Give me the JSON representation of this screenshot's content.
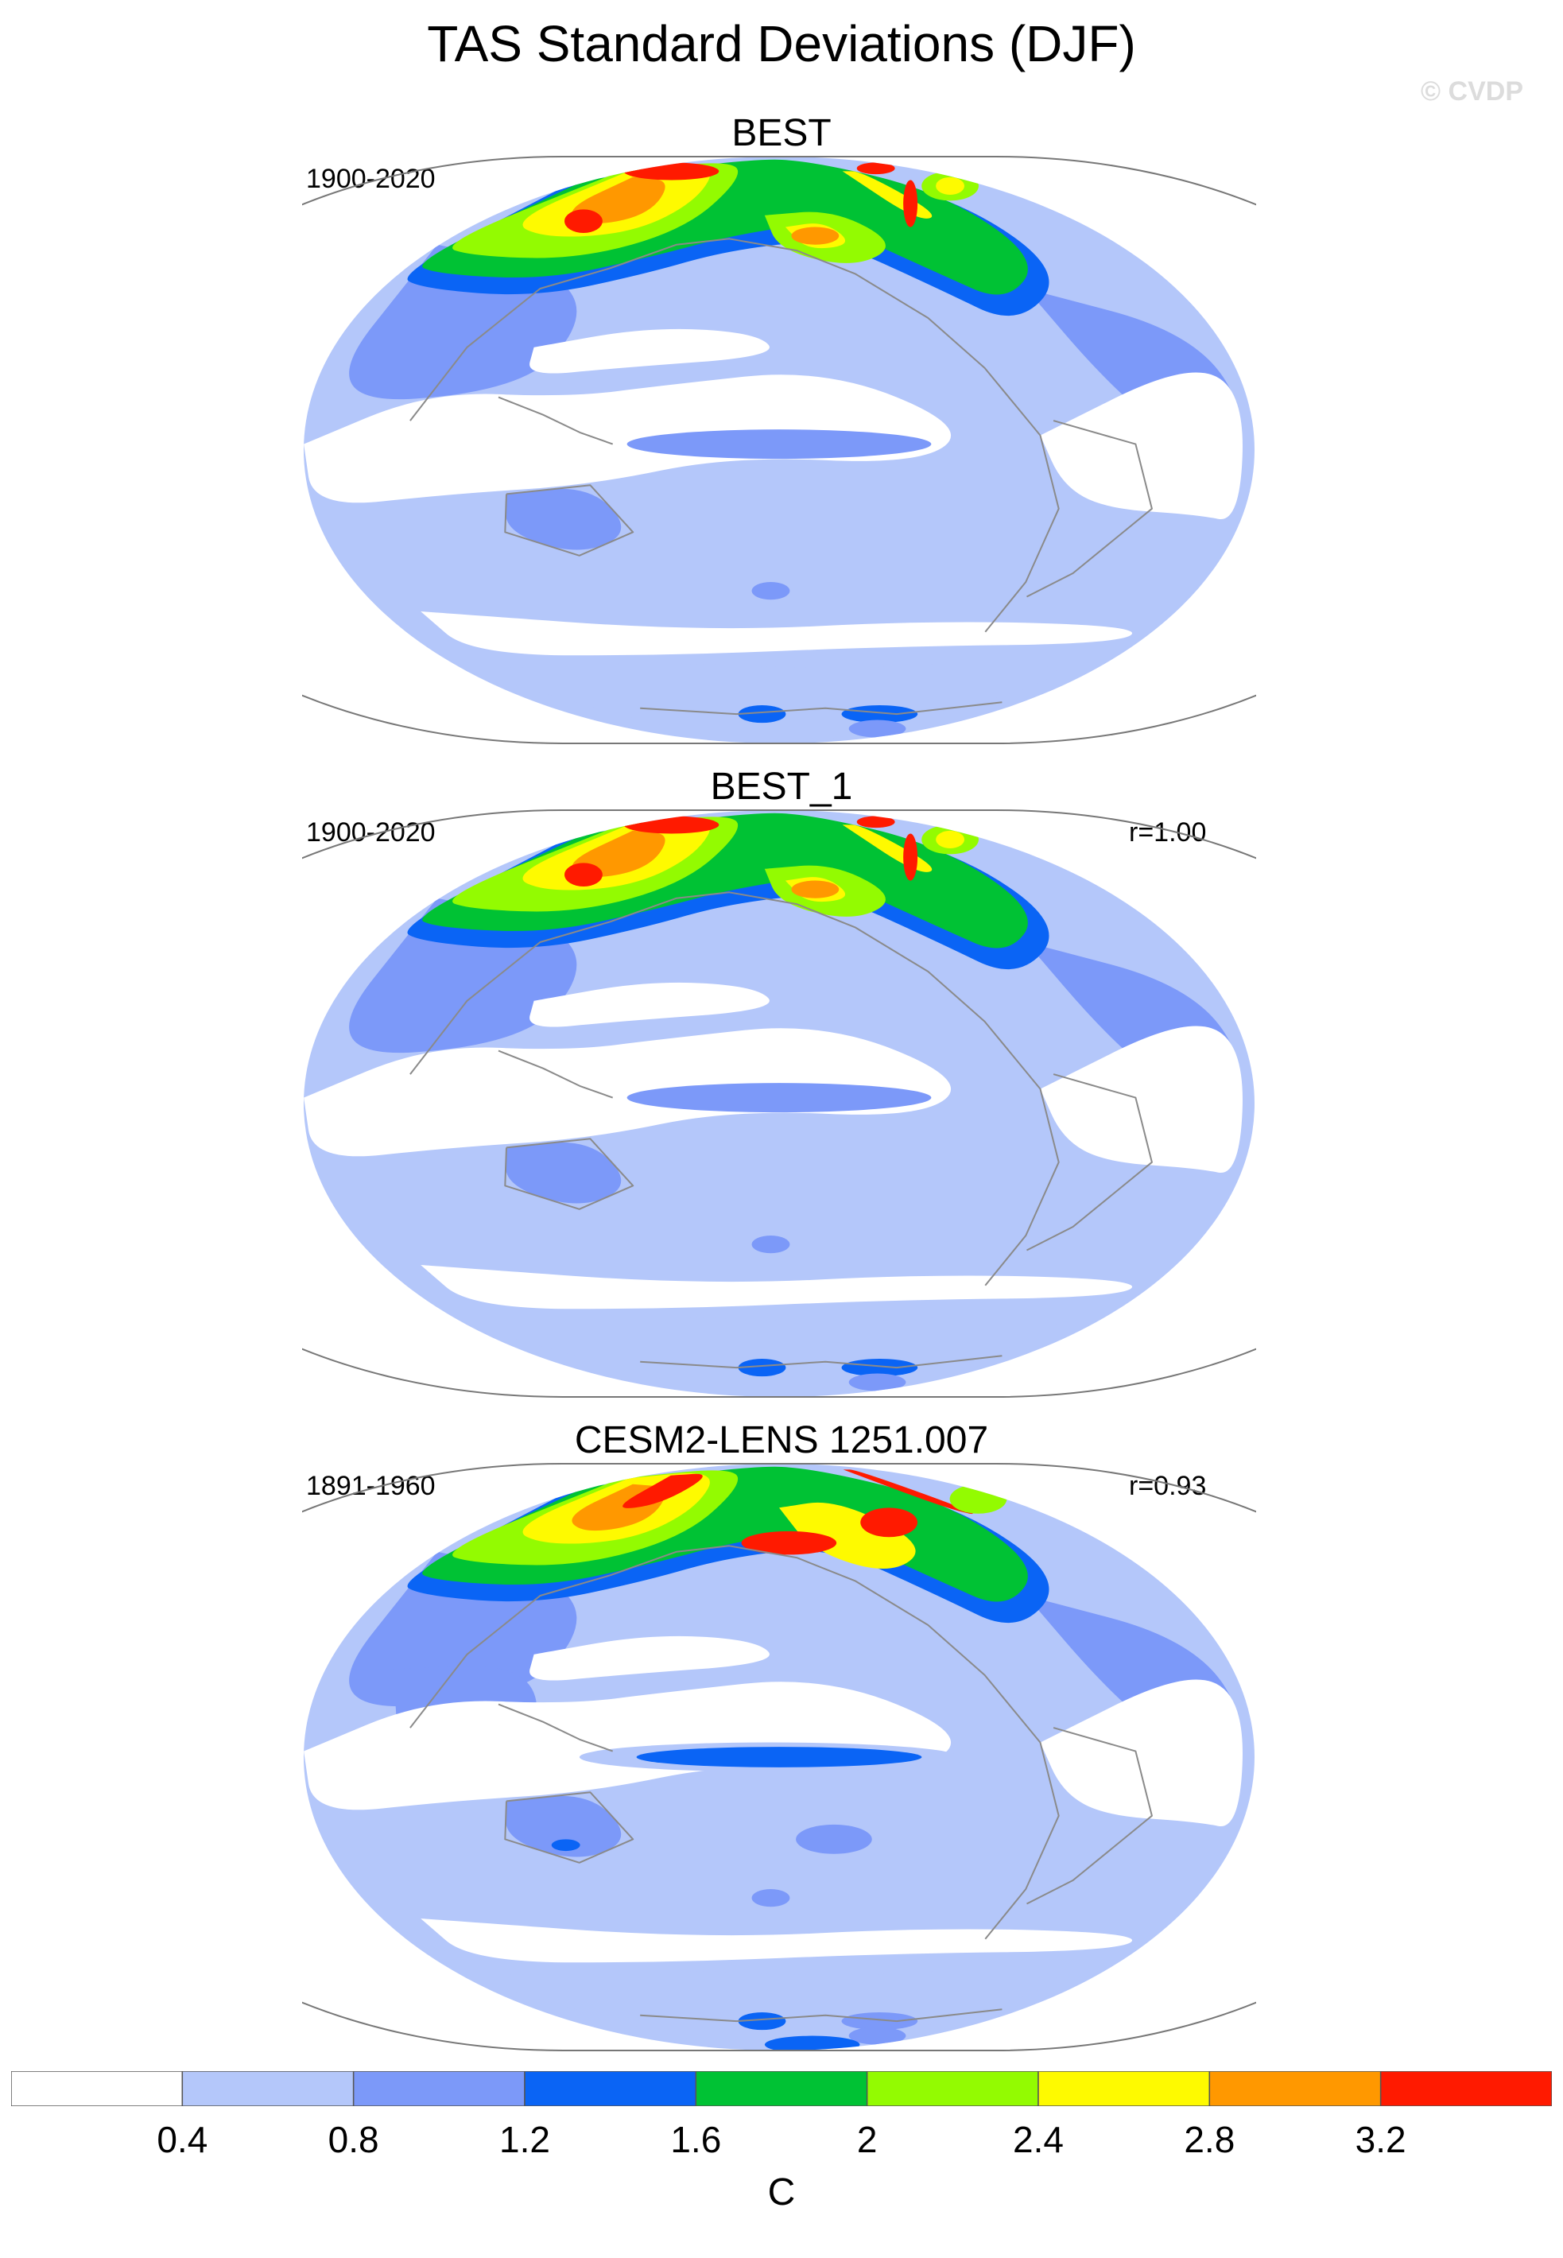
{
  "title": "TAS Standard Deviations (DJF)",
  "credit": "© CVDP",
  "colors": {
    "levels": [
      "#ffffff",
      "#b4c7fa",
      "#7c99f9",
      "#0a64f5",
      "#00c234",
      "#93fb01",
      "#fefa00",
      "#ff9800",
      "#ff1a00"
    ],
    "coast": "#8a8a8a",
    "border": "#777777"
  },
  "panels": [
    {
      "title": "BEST",
      "period": "1900-2020",
      "r": ""
    },
    {
      "title": "BEST_1",
      "period": "1900-2020",
      "r": "r=1.00"
    },
    {
      "title": "CESM2-LENS 1251.007",
      "period": "1891-1960",
      "r": "r=0.93"
    }
  ],
  "colorbar": {
    "labels": [
      "0.4",
      "0.8",
      "1.2",
      "1.6",
      "2",
      "2.4",
      "2.8",
      "3.2"
    ],
    "units": "C"
  },
  "chart_data": {
    "type": "heatmap",
    "title": "TAS Standard Deviations (DJF)",
    "variable": "TAS standard deviation",
    "season": "DJF",
    "units": "C",
    "projection": "global, Pacific-centered",
    "levels": [
      0.4,
      0.8,
      1.2,
      1.6,
      2.0,
      2.4,
      2.8,
      3.2
    ],
    "maps": [
      {
        "name": "BEST",
        "period": "1900-2020",
        "pattern_correlation": null
      },
      {
        "name": "BEST_1",
        "period": "1900-2020",
        "pattern_correlation": 1.0
      },
      {
        "name": "CESM2-LENS 1251.007",
        "period": "1891-1960",
        "pattern_correlation": 0.93
      }
    ]
  }
}
